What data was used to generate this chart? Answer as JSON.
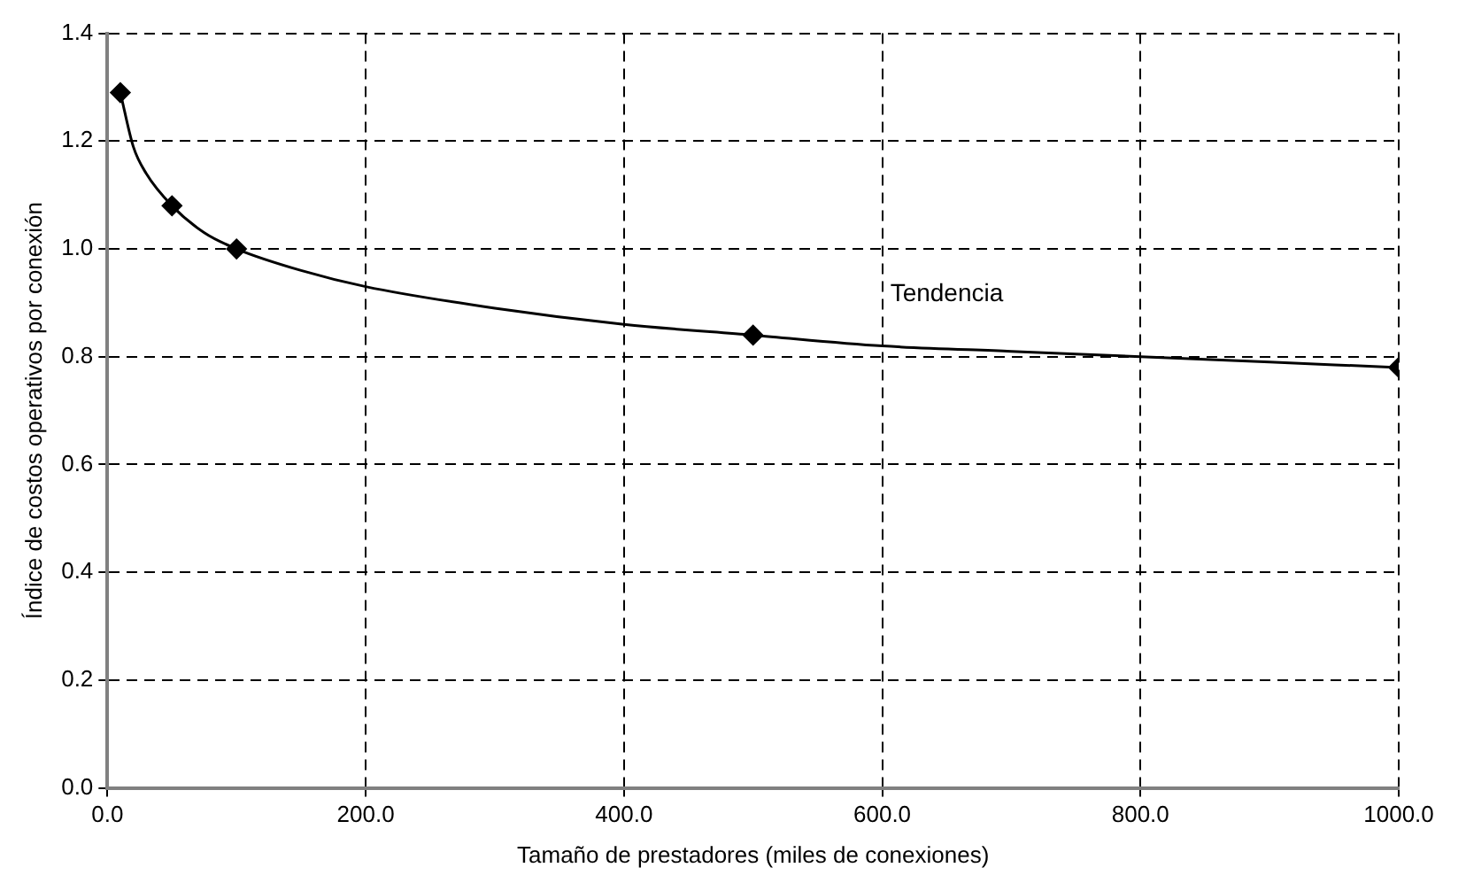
{
  "chart_data": {
    "type": "scatter",
    "xlabel": "Tamaño de prestadores (miles de conexiones)",
    "ylabel": "Índice de costos operativos por conexión",
    "xlim": [
      0,
      1000
    ],
    "xticks": [
      {
        "value": 0,
        "label": "0.0"
      },
      {
        "value": 200,
        "label": "200.0"
      },
      {
        "value": 400,
        "label": "400.0"
      },
      {
        "value": 600,
        "label": "600.0"
      },
      {
        "value": 800,
        "label": "800.0"
      },
      {
        "value": 1000,
        "label": "1000.0"
      }
    ],
    "ylim": [
      0,
      1.4
    ],
    "yticks": [
      {
        "value": 0,
        "label": "0.0"
      },
      {
        "value": 0.2,
        "label": "0.2"
      },
      {
        "value": 0.4,
        "label": "0.4"
      },
      {
        "value": 0.6,
        "label": "0.6"
      },
      {
        "value": 0.8,
        "label": "0.8"
      },
      {
        "value": 1,
        "label": "1.0"
      },
      {
        "value": 1.2,
        "label": "1.2"
      },
      {
        "value": 1.4,
        "label": "1.4"
      }
    ],
    "grid": true,
    "legend": false,
    "series": [
      {
        "type": "line",
        "name": "Tendencia",
        "color": "#000000",
        "marker": "none",
        "line_style": "solid",
        "x": [
          10,
          20,
          30,
          50,
          75,
          100,
          150,
          200,
          300,
          400,
          500,
          600,
          700,
          800,
          900,
          1000
        ],
        "values": [
          1.29,
          1.19,
          1.14,
          1.08,
          1.03,
          1.0,
          0.96,
          0.93,
          0.89,
          0.86,
          0.84,
          0.82,
          0.81,
          0.8,
          0.79,
          0.78
        ]
      },
      {
        "type": "scatter",
        "color": "#000000",
        "marker": "diamond",
        "x": [
          10,
          50,
          100,
          500,
          1000
        ],
        "values": [
          1.29,
          1.08,
          1.0,
          0.84,
          0.78
        ]
      }
    ]
  }
}
